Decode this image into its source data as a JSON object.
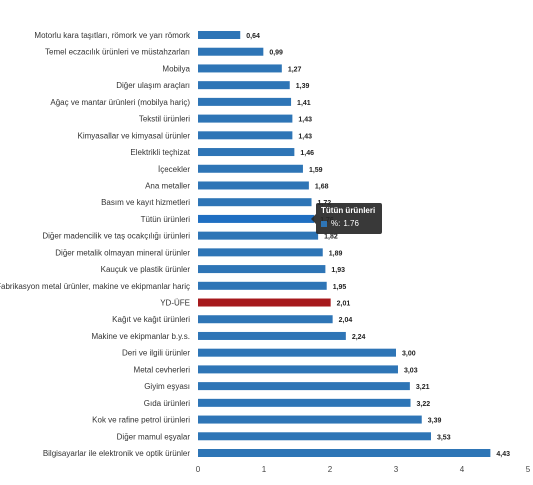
{
  "chart_data": {
    "type": "bar",
    "orientation": "horizontal",
    "categories": [
      "Motorlu kara taşıtları, römork ve yarı römork",
      "Temel eczacılık ürünleri ve müstahzarları",
      "Mobilya",
      "Diğer ulaşım araçları",
      "Ağaç ve mantar ürünleri (mobilya hariç)",
      "Tekstil ürünleri",
      "Kimyasallar ve kimyasal ürünler",
      "Elektrikli teçhizat",
      "İçecekler",
      "Ana metaller",
      "Basım ve kayıt hizmetleri",
      "Tütün ürünleri",
      "Diğer madencilik ve taş ocakçılığı ürünleri",
      "Diğer metalik olmayan mineral ürünler",
      "Kauçuk ve plastik ürünler",
      "Fabrikasyon metal ürünler, makine ve ekipmanlar hariç",
      "YD-ÜFE",
      "Kağıt ve kağıt ürünleri",
      "Makine ve ekipmanlar b.y.s.",
      "Deri ve ilgili ürünler",
      "Metal cevherleri",
      "Giyim eşyası",
      "Gıda ürünleri",
      "Kok ve rafine petrol ürünleri",
      "Diğer mamul eşyalar",
      "Bilgisayarlar ile elektronik ve optik ürünler"
    ],
    "values": [
      0.64,
      0.99,
      1.27,
      1.39,
      1.41,
      1.43,
      1.43,
      1.46,
      1.59,
      1.68,
      1.72,
      1.76,
      1.82,
      1.89,
      1.93,
      1.95,
      2.01,
      2.04,
      2.24,
      3.0,
      3.03,
      3.21,
      3.22,
      3.39,
      3.53,
      4.43
    ],
    "value_labels": [
      "0,64",
      "0,99",
      "1,27",
      "1,39",
      "1,41",
      "1,43",
      "1,43",
      "1,46",
      "1,59",
      "1,68",
      "1,72",
      "1,76",
      "1,82",
      "1,89",
      "1,93",
      "1,95",
      "2,01",
      "2,04",
      "2,24",
      "3,00",
      "3,03",
      "3,21",
      "3,22",
      "3,39",
      "3,53",
      "4,43"
    ],
    "xlim": [
      0,
      5
    ],
    "xticks": [
      0,
      1,
      2,
      3,
      4,
      5
    ],
    "grid": false,
    "colors": {
      "bar": "#2e75b6",
      "highlight_bar": "#a6191c",
      "hover_bar": "#1f6fc2"
    },
    "highlight_category": "YD-ÜFE",
    "hover_category": "Tütün ürünleri"
  },
  "tooltip": {
    "title": "Tütün ürünleri",
    "series_label": "%:",
    "value": "1.76",
    "swatch_color": "#2e75b6"
  }
}
